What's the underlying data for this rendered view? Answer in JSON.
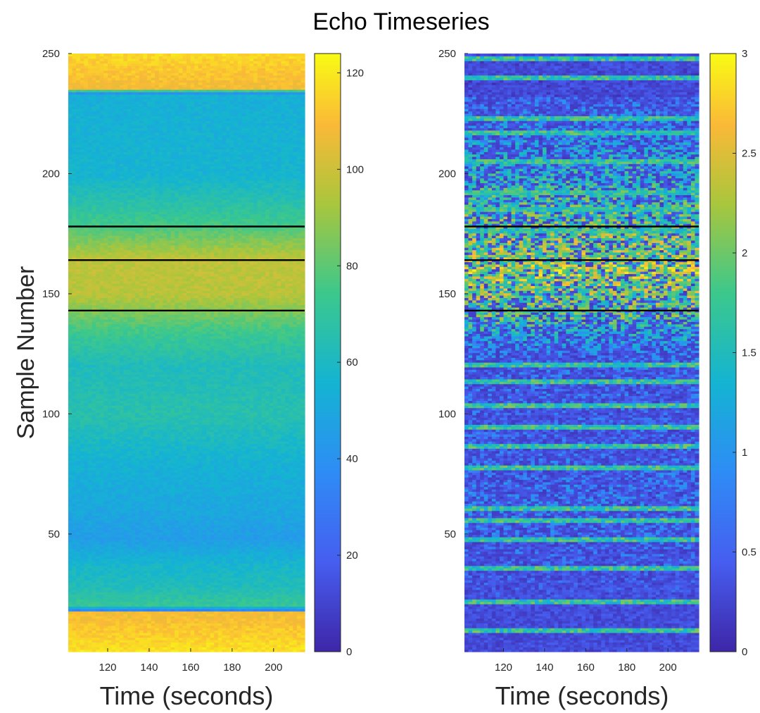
{
  "title": "Echo Timeseries",
  "chart_data": [
    {
      "type": "heatmap",
      "xlabel": "Time (seconds)",
      "ylabel": "Sample Number",
      "xlim": [
        101,
        215
      ],
      "ylim": [
        1,
        250
      ],
      "xticks": [
        120,
        140,
        160,
        180,
        200
      ],
      "yticks": [
        50,
        100,
        150,
        200,
        250
      ],
      "colormap": "parula",
      "colorbar": {
        "ticks": [
          0,
          20,
          40,
          60,
          80,
          100,
          120
        ],
        "range": [
          0,
          124
        ]
      },
      "horizontal_lines": [
        178,
        164,
        143
      ],
      "line_color": "#000000",
      "row_profile": [
        {
          "sample": 1,
          "value": 118
        },
        {
          "sample": 17,
          "value": 108
        },
        {
          "sample": 18,
          "value": 35
        },
        {
          "sample": 20,
          "value": 72
        },
        {
          "sample": 28,
          "value": 62
        },
        {
          "sample": 36,
          "value": 58
        },
        {
          "sample": 48,
          "value": 45
        },
        {
          "sample": 60,
          "value": 50
        },
        {
          "sample": 80,
          "value": 55
        },
        {
          "sample": 100,
          "value": 66
        },
        {
          "sample": 120,
          "value": 62
        },
        {
          "sample": 135,
          "value": 75
        },
        {
          "sample": 150,
          "value": 96
        },
        {
          "sample": 165,
          "value": 97
        },
        {
          "sample": 180,
          "value": 74
        },
        {
          "sample": 200,
          "value": 56
        },
        {
          "sample": 233,
          "value": 54
        },
        {
          "sample": 234,
          "value": 40
        },
        {
          "sample": 236,
          "value": 108
        },
        {
          "sample": 250,
          "value": 116
        }
      ]
    },
    {
      "type": "heatmap",
      "xlabel": "Time (seconds)",
      "ylabel": "",
      "xlim": [
        101,
        215
      ],
      "ylim": [
        1,
        250
      ],
      "xticks": [
        120,
        140,
        160,
        180,
        200
      ],
      "yticks": [
        50,
        100,
        150,
        200,
        250
      ],
      "colormap": "parula",
      "colorbar": {
        "ticks": [
          0,
          0.5,
          1,
          1.5,
          2,
          2.5,
          3
        ],
        "range": [
          0,
          3
        ]
      },
      "horizontal_lines": [
        178,
        164,
        143
      ],
      "line_color": "#000000",
      "bright_bands": [
        248,
        240,
        223,
        217,
        205,
        192,
        185,
        176,
        120,
        113,
        103,
        94,
        86,
        77,
        60,
        55,
        47,
        35,
        21,
        9
      ],
      "activity_profile": [
        {
          "sample": 1,
          "value": 0.2
        },
        {
          "sample": 30,
          "value": 0.6
        },
        {
          "sample": 60,
          "value": 0.9
        },
        {
          "sample": 100,
          "value": 0.7
        },
        {
          "sample": 125,
          "value": 0.9
        },
        {
          "sample": 140,
          "value": 1.8
        },
        {
          "sample": 160,
          "value": 2.3
        },
        {
          "sample": 180,
          "value": 1.9
        },
        {
          "sample": 210,
          "value": 1.3
        },
        {
          "sample": 232,
          "value": 0.8
        },
        {
          "sample": 233,
          "value": 0.1
        },
        {
          "sample": 250,
          "value": 0.1
        }
      ]
    }
  ]
}
